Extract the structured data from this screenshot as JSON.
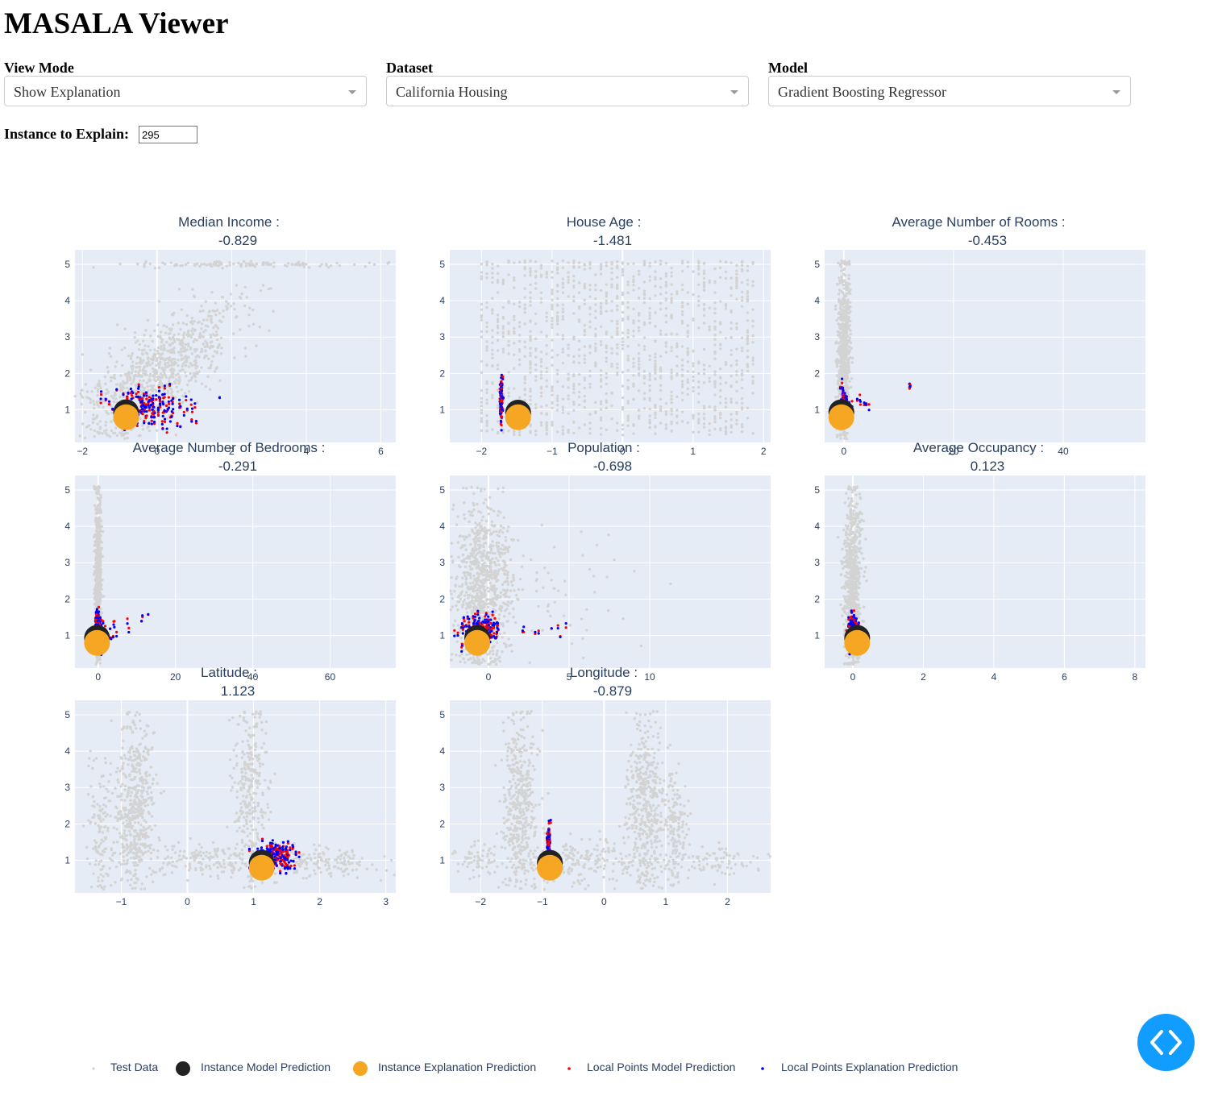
{
  "app": {
    "title": "MASALA Viewer"
  },
  "controls": {
    "view_mode": {
      "label": "View Mode",
      "value": "Show Explanation"
    },
    "dataset": {
      "label": "Dataset",
      "value": "California Housing"
    },
    "model": {
      "label": "Model",
      "value": "Gradient Boosting Regressor"
    },
    "instance": {
      "label": "Instance to Explain:",
      "value": "295"
    }
  },
  "colors": {
    "test_data": "#d3d3d3",
    "instance_model": "#222222",
    "instance_explanation": "#f5a623",
    "local_model": "#ff0000",
    "local_explanation": "#0000ff",
    "plot_bg": "#e5ecf6",
    "axis_text": "#2a3f5f",
    "fab": "#119dff"
  },
  "legend": [
    {
      "label": "Test Data",
      "icon": "small-gray-dot"
    },
    {
      "label": "Instance Model Prediction",
      "icon": "large-black-circle"
    },
    {
      "label": "Instance Explanation Prediction",
      "icon": "large-orange-circle"
    },
    {
      "label": "Local Points Model Prediction",
      "icon": "small-red-dot"
    },
    {
      "label": "Local Points Explanation Prediction",
      "icon": "small-blue-dot"
    }
  ],
  "fab": {
    "icon": "code-brackets-icon"
  },
  "chart_data": [
    {
      "type": "scatter",
      "title": "Median Income :",
      "value_label": "-0.829",
      "xlim": [
        -2.2,
        6.4
      ],
      "ylim": [
        0.1,
        5.4
      ],
      "xticks": [
        -2,
        0,
        2,
        4,
        6
      ],
      "xtick_labels": [
        "−2",
        "0",
        "2",
        "4",
        "6"
      ],
      "yticks": [
        1,
        2,
        3,
        4,
        5
      ],
      "instance": {
        "x": -0.829,
        "model_y": 0.93,
        "explanation_y": 0.86
      },
      "cloud": [
        {
          "x": 0,
          "y": 2,
          "sx": 1.1,
          "sy": 1.0,
          "n": 900,
          "corr": 0.75
        },
        {
          "x": 2.5,
          "y": 5.0,
          "sx": 1.6,
          "sy": 0.04,
          "n": 120
        }
      ],
      "local": [
        {
          "x": -0.2,
          "y": 1.1,
          "sx": 0.6,
          "sy": 0.25,
          "n": 130
        }
      ]
    },
    {
      "type": "scatter",
      "title": "House Age :",
      "value_label": "-1.481",
      "xlim": [
        -2.45,
        2.1
      ],
      "ylim": [
        0.1,
        5.4
      ],
      "xticks": [
        -2,
        -1,
        0,
        1,
        2
      ],
      "xtick_labels": [
        "−2",
        "−1",
        "0",
        "1",
        "2"
      ],
      "yticks": [
        1,
        2,
        3,
        4,
        5
      ],
      "instance": {
        "x": -1.481,
        "model_y": 0.92,
        "explanation_y": 0.86
      },
      "cloud": [
        {
          "x": -0.1,
          "y": 2.0,
          "sx": 1.1,
          "sy": 1.0,
          "n": 1300,
          "columns": true,
          "xmin": -2.0,
          "xmax": 1.85
        }
      ],
      "local": [
        {
          "x": -1.72,
          "y": 1.3,
          "sx": 0.01,
          "sy": 0.25,
          "n": 90
        },
        {
          "x": -1.48,
          "y": 0.95,
          "sx": 0.06,
          "sy": 0.1,
          "n": 20
        }
      ]
    },
    {
      "type": "scatter",
      "title": "Average Number of Rooms :",
      "value_label": "-0.453",
      "xlim": [
        -3.5,
        55
      ],
      "ylim": [
        0.1,
        5.4
      ],
      "xticks": [
        0,
        20,
        40
      ],
      "xtick_labels": [
        "0",
        "20",
        "40"
      ],
      "yticks": [
        1,
        2,
        3,
        4,
        5
      ],
      "instance": {
        "x": -0.453,
        "model_y": 0.93,
        "explanation_y": 0.86
      },
      "cloud": [
        {
          "x": 0,
          "y": 2.5,
          "sx": 0.6,
          "sy": 1.2,
          "n": 700
        }
      ],
      "local": [
        {
          "x": 0,
          "y": 1.15,
          "sx": 0.3,
          "sy": 0.25,
          "n": 100
        },
        {
          "x": 3.5,
          "y": 1.2,
          "sx": 1.2,
          "sy": 0.15,
          "n": 8
        },
        {
          "x": 12,
          "y": 1.6,
          "sx": 0.1,
          "sy": 0.08,
          "n": 4
        }
      ]
    },
    {
      "type": "scatter",
      "title": "Average Number of Bedrooms :",
      "value_label": "-0.291",
      "xlim": [
        -6,
        77
      ],
      "ylim": [
        0.1,
        5.4
      ],
      "xticks": [
        0,
        20,
        40,
        60
      ],
      "xtick_labels": [
        "0",
        "20",
        "40",
        "60"
      ],
      "yticks": [
        1,
        2,
        3,
        4,
        5
      ],
      "instance": {
        "x": -0.291,
        "model_y": 0.93,
        "explanation_y": 0.86
      },
      "cloud": [
        {
          "x": 0,
          "y": 2.5,
          "sx": 0.4,
          "sy": 1.2,
          "n": 700
        }
      ],
      "local": [
        {
          "x": 0,
          "y": 1.15,
          "sx": 0.4,
          "sy": 0.25,
          "n": 100
        },
        {
          "x": 4,
          "y": 1.2,
          "sx": 1.5,
          "sy": 0.2,
          "n": 8
        },
        {
          "x": 12,
          "y": 1.5,
          "sx": 2,
          "sy": 0.2,
          "n": 5
        }
      ]
    },
    {
      "type": "scatter",
      "title": "Population :",
      "value_label": "-0.698",
      "xlim": [
        -2.4,
        17.5
      ],
      "ylim": [
        0.1,
        5.4
      ],
      "xticks": [
        0,
        5,
        10
      ],
      "xtick_labels": [
        "0",
        "5",
        "10"
      ],
      "yticks": [
        1,
        2,
        3,
        4,
        5
      ],
      "instance": {
        "x": -0.698,
        "model_y": 0.93,
        "explanation_y": 0.86
      },
      "cloud": [
        {
          "x": -0.4,
          "y": 2.3,
          "sx": 0.9,
          "sy": 1.1,
          "n": 900
        },
        {
          "x": 4,
          "y": 2,
          "sx": 3,
          "sy": 1,
          "n": 60
        }
      ],
      "local": [
        {
          "x": -0.5,
          "y": 1.15,
          "sx": 0.6,
          "sy": 0.2,
          "n": 130
        },
        {
          "x": 3,
          "y": 1.15,
          "sx": 1,
          "sy": 0.1,
          "n": 8
        }
      ]
    },
    {
      "type": "scatter",
      "title": "Average Occupancy :",
      "value_label": "0.123",
      "xlim": [
        -0.8,
        8.3
      ],
      "ylim": [
        0.1,
        5.4
      ],
      "xticks": [
        0,
        2,
        4,
        6,
        8
      ],
      "xtick_labels": [
        "0",
        "2",
        "4",
        "6",
        "8"
      ],
      "yticks": [
        1,
        2,
        3,
        4,
        5
      ],
      "instance": {
        "x": 0.123,
        "model_y": 0.93,
        "explanation_y": 0.86
      },
      "cloud": [
        {
          "x": 0,
          "y": 2.5,
          "sx": 0.12,
          "sy": 1.2,
          "n": 700
        }
      ],
      "local": [
        {
          "x": 0,
          "y": 1.15,
          "sx": 0.08,
          "sy": 0.25,
          "n": 100
        }
      ]
    },
    {
      "type": "scatter",
      "title": "Latitude :",
      "value_label": "1.123",
      "xlim": [
        -1.7,
        3.15
      ],
      "ylim": [
        0.1,
        5.4
      ],
      "xticks": [
        -1,
        0,
        1,
        2,
        3
      ],
      "xtick_labels": [
        "−1",
        "0",
        "1",
        "2",
        "3"
      ],
      "yticks": [
        1,
        2,
        3,
        4,
        5
      ],
      "instance": {
        "x": 1.123,
        "model_y": 0.93,
        "explanation_y": 0.86
      },
      "cloud": [
        {
          "x": -0.8,
          "y": 2.5,
          "sx": 0.15,
          "sy": 1.1,
          "n": 500
        },
        {
          "x": -1.3,
          "y": 2.0,
          "sx": 0.1,
          "sy": 0.9,
          "n": 120
        },
        {
          "x": 0.95,
          "y": 2.8,
          "sx": 0.12,
          "sy": 1.2,
          "n": 300
        },
        {
          "x": 0.6,
          "y": 1.0,
          "sx": 0.8,
          "sy": 0.25,
          "n": 250
        },
        {
          "x": 1.9,
          "y": 0.95,
          "sx": 0.5,
          "sy": 0.2,
          "n": 150
        }
      ],
      "local": [
        {
          "x": 1.3,
          "y": 1.1,
          "sx": 0.15,
          "sy": 0.18,
          "n": 160
        }
      ]
    },
    {
      "type": "scatter",
      "title": "Longitude :",
      "value_label": "-0.879",
      "xlim": [
        -2.5,
        2.7
      ],
      "ylim": [
        0.1,
        5.4
      ],
      "xticks": [
        -2,
        -1,
        0,
        1,
        2
      ],
      "xtick_labels": [
        "−2",
        "−1",
        "0",
        "1",
        "2"
      ],
      "yticks": [
        1,
        2,
        3,
        4,
        5
      ],
      "instance": {
        "x": -0.879,
        "model_y": 0.93,
        "explanation_y": 0.86
      },
      "cloud": [
        {
          "x": -1.35,
          "y": 2.5,
          "sx": 0.15,
          "sy": 1.2,
          "n": 450
        },
        {
          "x": 0.65,
          "y": 2.6,
          "sx": 0.15,
          "sy": 1.2,
          "n": 450
        },
        {
          "x": 1.15,
          "y": 1.8,
          "sx": 0.1,
          "sy": 0.8,
          "n": 150
        },
        {
          "x": -0.3,
          "y": 1.0,
          "sx": 0.5,
          "sy": 0.3,
          "n": 200
        },
        {
          "x": -2.1,
          "y": 1.1,
          "sx": 0.2,
          "sy": 0.3,
          "n": 60
        },
        {
          "x": 1.8,
          "y": 0.95,
          "sx": 0.4,
          "sy": 0.2,
          "n": 80
        }
      ],
      "local": [
        {
          "x": -0.9,
          "y": 1.3,
          "sx": 0.01,
          "sy": 0.3,
          "n": 100
        }
      ]
    }
  ]
}
